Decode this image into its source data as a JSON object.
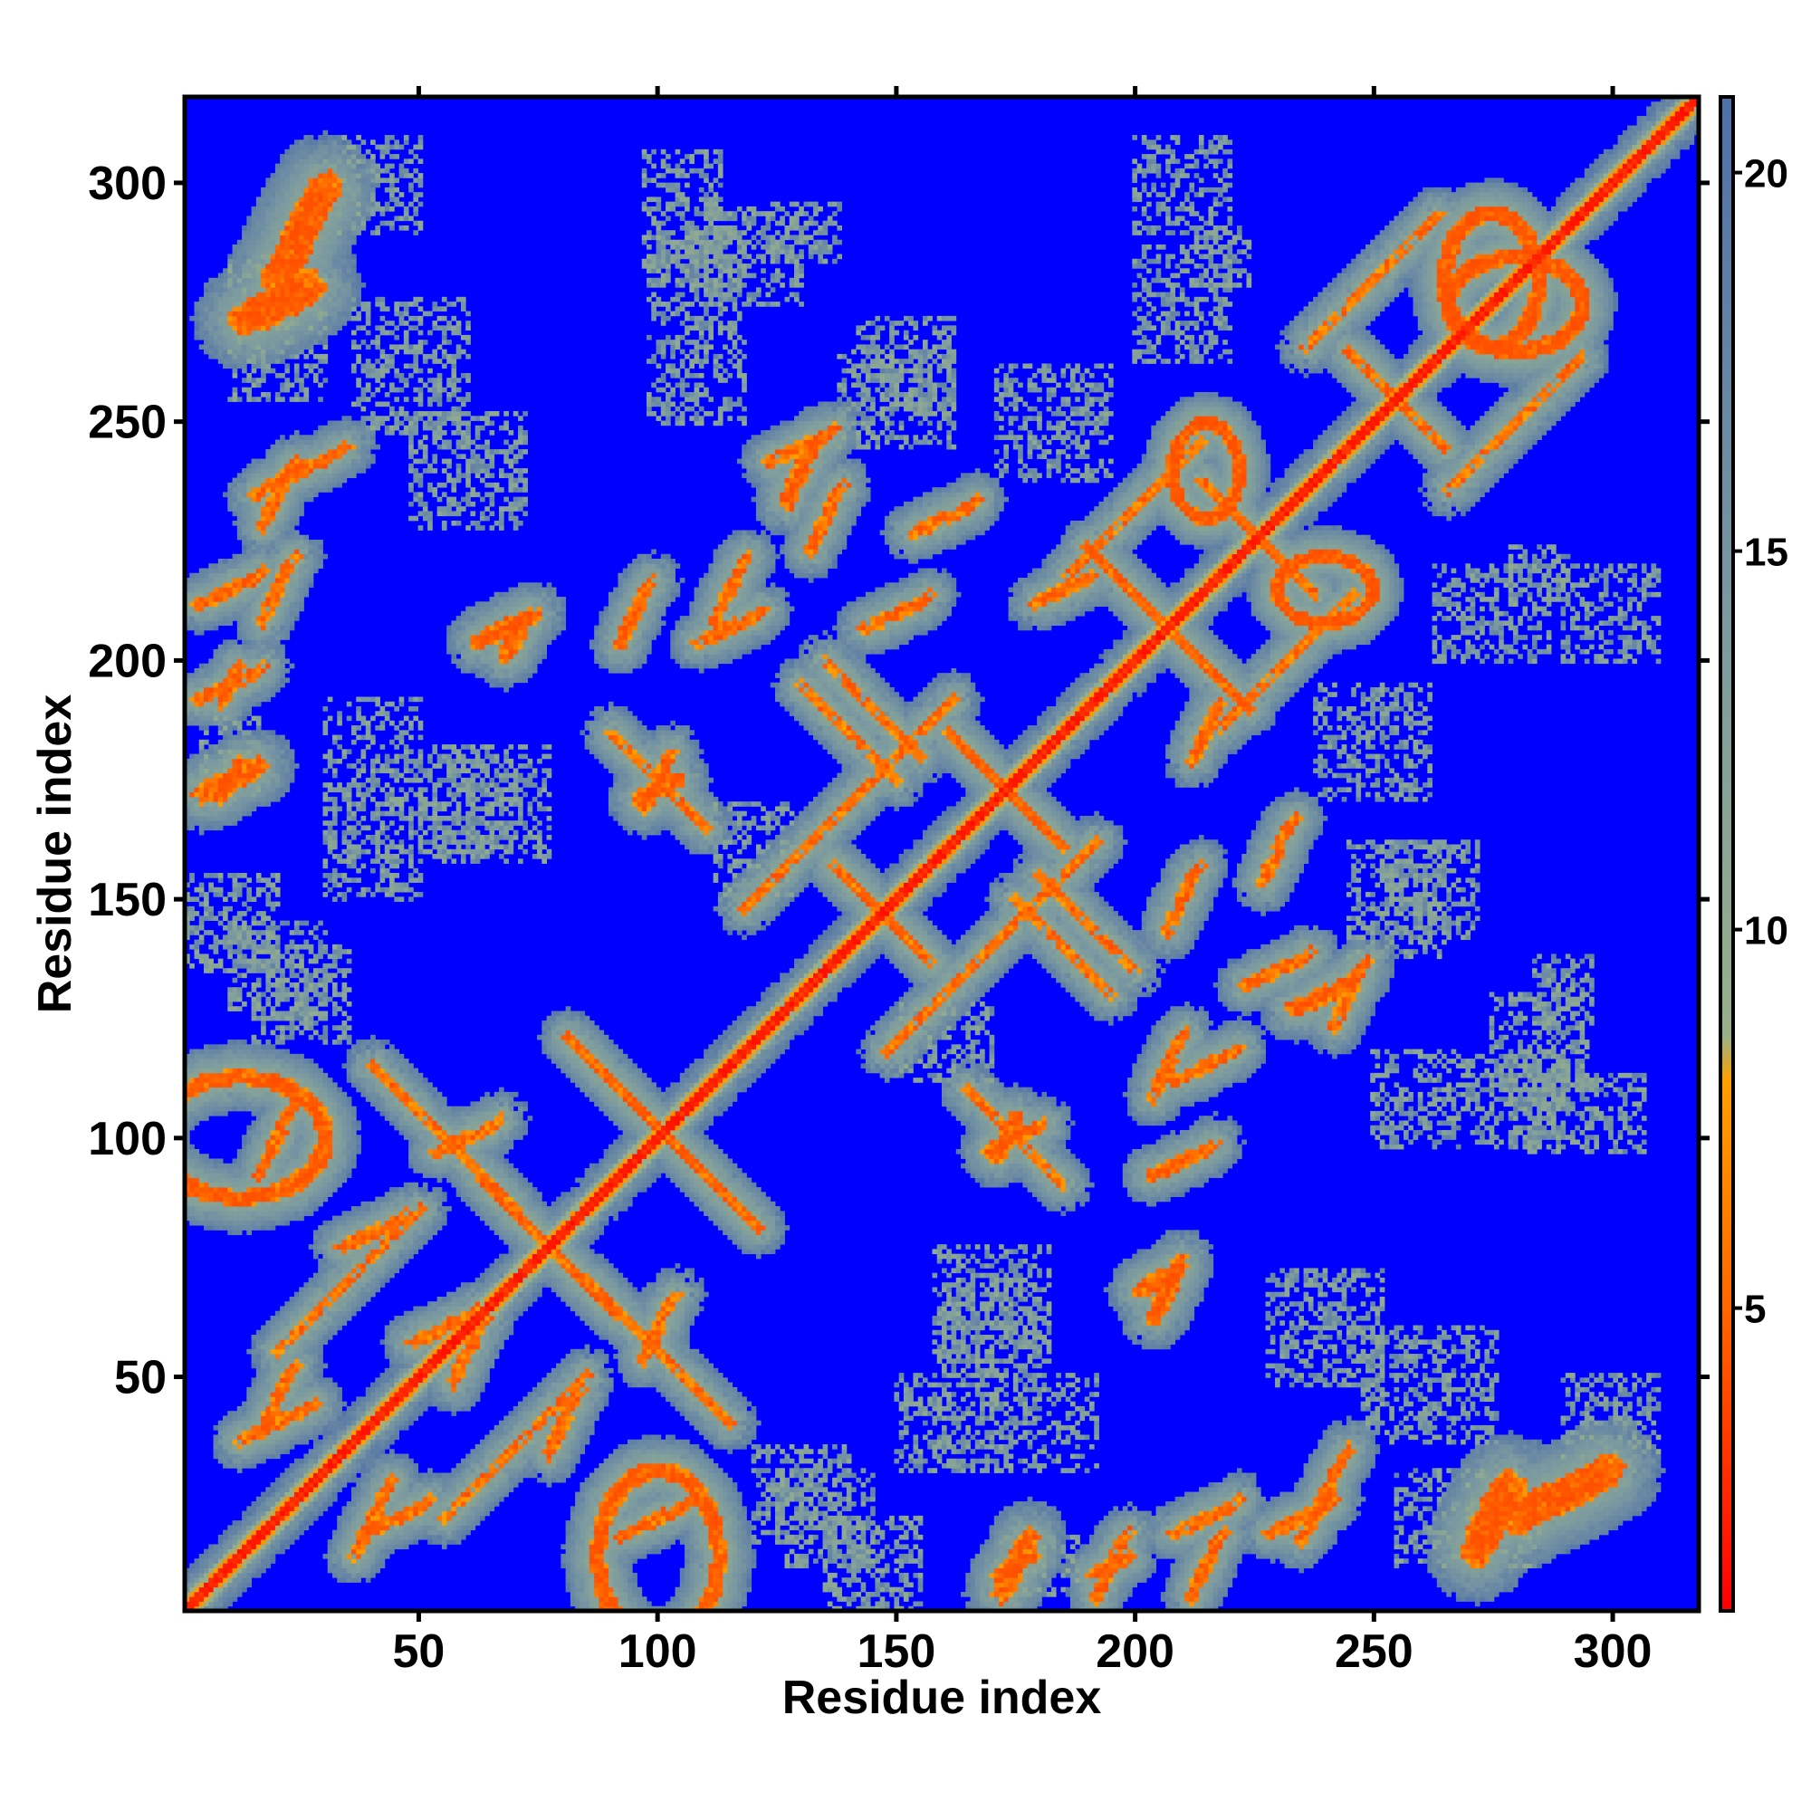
{
  "chart_data": {
    "type": "heatmap",
    "title": "",
    "xlabel": "Residue index",
    "ylabel": "Residue index",
    "n_residues": 318,
    "xlim": [
      1,
      318
    ],
    "ylim": [
      1,
      318
    ],
    "x_ticks": [
      50,
      100,
      150,
      200,
      250,
      300
    ],
    "y_ticks": [
      50,
      100,
      150,
      200,
      250,
      300
    ],
    "colorbar": {
      "range": [
        1,
        21
      ],
      "ticks": [
        5,
        10,
        15,
        20
      ],
      "stops": [
        {
          "value": 1,
          "color": "#ff0000"
        },
        {
          "value": 5,
          "color": "#ff6600"
        },
        {
          "value": 8,
          "color": "#ffa000"
        },
        {
          "value": 8.6,
          "color": "#98b08a"
        },
        {
          "value": 14,
          "color": "#7c9aa0"
        },
        {
          "value": 21,
          "color": "#4f6fa8"
        }
      ]
    },
    "background_color": "#0000ff",
    "grid": false,
    "symmetric": true,
    "main_diagonal": {
      "from": 1,
      "to": 318,
      "width": 4
    },
    "contact_bands": [
      {
        "kind": "antiparallel",
        "center": [
          101,
          101
        ],
        "half_length": 20,
        "width": 3
      },
      {
        "kind": "antiparallel",
        "center": [
          207,
          207
        ],
        "half_length": 17,
        "width": 3
      },
      {
        "kind": "antiparallel",
        "center": [
          173,
          173
        ],
        "half_length": 12,
        "width": 3
      },
      {
        "kind": "antiparallel",
        "center": [
          226,
          226
        ],
        "half_length": 12,
        "width": 3
      },
      {
        "kind": "antiparallel",
        "center": [
          77,
          77
        ],
        "half_length": 14,
        "width": 3
      },
      {
        "kind": "antiparallel",
        "center": [
          147,
          147
        ],
        "half_length": 10,
        "width": 3
      },
      {
        "kind": "antiparallel",
        "center": [
          255,
          255
        ],
        "half_length": 10,
        "width": 3
      },
      {
        "kind": "antiparallel",
        "center": [
          140,
          185
        ],
        "half_length": 10,
        "width": 3
      },
      {
        "kind": "antiparallel",
        "center": [
          100,
          55
        ],
        "half_length": 15,
        "width": 3
      },
      {
        "kind": "antiparallel",
        "center": [
          190,
          145
        ],
        "half_length": 10,
        "width": 3
      },
      {
        "kind": "antiparallel",
        "center": [
          175,
          100
        ],
        "half_length": 10,
        "width": 3
      },
      {
        "kind": "parallel",
        "center": [
          170,
          140
        ],
        "half_length": 22,
        "width": 3
      },
      {
        "kind": "parallel",
        "center": [
          280,
          250
        ],
        "half_length": 14,
        "width": 3
      },
      {
        "kind": "parallel",
        "center": [
          35,
          70
        ],
        "half_length": 15,
        "width": 3
      },
      {
        "kind": "parallel",
        "center": [
          200,
          232
        ],
        "half_length": 14,
        "width": 3
      },
      {
        "kind": "ring",
        "center": [
          12,
          100
        ],
        "half_length": 18,
        "width": 4
      },
      {
        "kind": "ring",
        "center": [
          280,
          275
        ],
        "half_length": 14,
        "width": 4
      },
      {
        "kind": "ring",
        "center": [
          240,
          215
        ],
        "half_length": 10,
        "width": 3
      },
      {
        "kind": "patch",
        "center": [
          20,
          275
        ],
        "half_length": 10,
        "width": 8
      },
      {
        "kind": "patch",
        "center": [
          25,
          240
        ],
        "half_length": 14,
        "width": 3
      },
      {
        "kind": "patch",
        "center": [
          10,
          215
        ],
        "half_length": 10,
        "width": 3
      },
      {
        "kind": "patch",
        "center": [
          10,
          195
        ],
        "half_length": 10,
        "width": 3
      },
      {
        "kind": "patch",
        "center": [
          10,
          175
        ],
        "half_length": 8,
        "width": 5
      },
      {
        "kind": "patch",
        "center": [
          68,
          207
        ],
        "half_length": 8,
        "width": 4
      },
      {
        "kind": "patch",
        "center": [
          100,
          173
        ],
        "half_length": 6,
        "width": 4
      },
      {
        "kind": "patch",
        "center": [
          130,
          245
        ],
        "half_length": 10,
        "width": 3
      },
      {
        "kind": "patch",
        "center": [
          115,
          207
        ],
        "half_length": 10,
        "width": 3
      },
      {
        "kind": "patch",
        "center": [
          175,
          100
        ],
        "half_length": 8,
        "width": 3
      },
      {
        "kind": "patch",
        "center": [
          230,
          135
        ],
        "half_length": 10,
        "width": 3
      },
      {
        "kind": "patch",
        "center": [
          205,
          70
        ],
        "half_length": 6,
        "width": 4
      },
      {
        "kind": "patch",
        "center": [
          290,
          25
        ],
        "half_length": 14,
        "width": 8
      },
      {
        "kind": "patch",
        "center": [
          240,
          130
        ],
        "half_length": 10,
        "width": 4
      },
      {
        "kind": "patch",
        "center": [
          100,
          20
        ],
        "half_length": 12,
        "width": 3
      },
      {
        "kind": "patch",
        "center": [
          215,
          20
        ],
        "half_length": 10,
        "width": 3
      },
      {
        "kind": "patch",
        "center": [
          235,
          20
        ],
        "half_length": 10,
        "width": 3
      },
      {
        "kind": "patch",
        "center": [
          175,
          10
        ],
        "half_length": 6,
        "width": 3
      },
      {
        "kind": "patch",
        "center": [
          195,
          10
        ],
        "half_length": 6,
        "width": 3
      },
      {
        "kind": "patch",
        "center": [
          20,
          40
        ],
        "half_length": 12,
        "width": 3
      },
      {
        "kind": "patch",
        "center": [
          45,
          20
        ],
        "half_length": 10,
        "width": 3
      },
      {
        "kind": "patch",
        "center": [
          60,
          100
        ],
        "half_length": 10,
        "width": 3
      },
      {
        "kind": "patch",
        "center": [
          55,
          60
        ],
        "half_length": 10,
        "width": 3
      },
      {
        "kind": "patch",
        "center": [
          40,
          80
        ],
        "half_length": 10,
        "width": 3
      },
      {
        "kind": "patch",
        "center": [
          210,
          95
        ],
        "half_length": 10,
        "width": 3
      },
      {
        "kind": "patch",
        "center": [
          215,
          115
        ],
        "half_length": 10,
        "width": 3
      },
      {
        "kind": "patch",
        "center": [
          160,
          230
        ],
        "half_length": 10,
        "width": 3
      },
      {
        "kind": "patch",
        "center": [
          150,
          210
        ],
        "half_length": 10,
        "width": 3
      },
      {
        "kind": "patch",
        "center": [
          185,
          215
        ],
        "half_length": 8,
        "width": 3
      }
    ],
    "scattered_patches": [
      [
        48,
        262,
        12,
        14
      ],
      [
        108,
        270,
        10,
        20
      ],
      [
        150,
        255,
        12,
        10
      ],
      [
        183,
        250,
        12,
        12
      ],
      [
        10,
        145,
        10,
        10
      ],
      [
        60,
        170,
        10,
        10
      ],
      [
        25,
        130,
        10,
        10
      ],
      [
        120,
        160,
        8,
        10
      ],
      [
        262,
        152,
        10,
        10
      ],
      [
        295,
        105,
        12,
        8
      ],
      [
        170,
        65,
        12,
        12
      ],
      [
        180,
        40,
        12,
        10
      ],
      [
        135,
        20,
        10,
        10
      ],
      [
        180,
        10,
        8,
        6
      ],
      [
        270,
        20,
        15,
        10
      ],
      [
        240,
        60,
        12,
        12
      ],
      [
        300,
        40,
        10,
        10
      ],
      [
        160,
        40,
        10,
        10
      ],
      [
        275,
        210,
        12,
        10
      ],
      [
        300,
        210,
        10,
        10
      ],
      [
        130,
        290,
        8,
        6
      ],
      [
        110,
        285,
        6,
        6
      ],
      [
        218,
        285,
        6,
        6
      ],
      [
        285,
        120,
        10,
        10
      ]
    ]
  }
}
